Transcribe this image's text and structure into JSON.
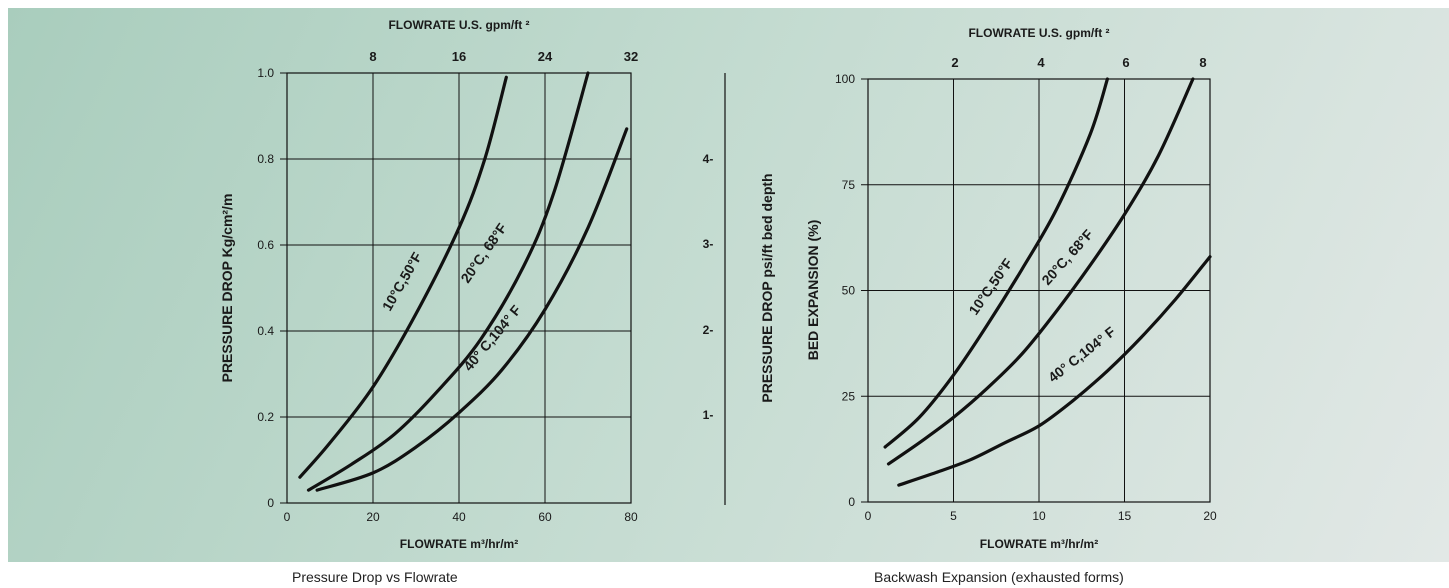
{
  "chart_data": [
    {
      "type": "line",
      "caption": "Pressure Drop vs Flowrate",
      "xlabel": "FLOWRATE m³/hr/m²",
      "x2label": "FLOWRATE U.S. gpm/ft ²",
      "ylabel": "PRESSURE DROP Kg/cm²/m",
      "y2label": "PRESSURE DROP psi/ft  bed  depth",
      "xlim": [
        0,
        80
      ],
      "ylim": [
        0,
        1.0
      ],
      "xticks": [
        "0",
        "20",
        "40",
        "60",
        "80"
      ],
      "yticks": [
        "0",
        "0.2",
        "0.4",
        "0.6",
        "0.8",
        "1.0"
      ],
      "x2ticks": [
        "8",
        "16",
        "24",
        "32"
      ],
      "y2ticks": [
        "1-",
        "2-",
        "3-",
        "4-"
      ],
      "grid": true,
      "series": [
        {
          "name": "10°C,50°F",
          "x": [
            3,
            10,
            20,
            30,
            40,
            46,
            51
          ],
          "y": [
            0.06,
            0.14,
            0.27,
            0.44,
            0.64,
            0.8,
            0.99
          ]
        },
        {
          "name": "20°C, 68°F",
          "x": [
            5,
            15,
            25,
            35,
            45,
            55,
            62,
            70
          ],
          "y": [
            0.03,
            0.09,
            0.16,
            0.26,
            0.38,
            0.55,
            0.72,
            1.0
          ]
        },
        {
          "name": "40° C,104° F",
          "x": [
            7,
            20,
            30,
            40,
            50,
            60,
            70,
            79
          ],
          "y": [
            0.03,
            0.07,
            0.13,
            0.21,
            0.31,
            0.45,
            0.64,
            0.87
          ]
        }
      ]
    },
    {
      "type": "line",
      "caption": "Backwash Expansion (exhausted forms)",
      "xlabel": "FLOWRATE m³/hr/m²",
      "x2label": "FLOWRATE U.S. gpm/ft ²",
      "ylabel": "BED EXPANSION  (%)",
      "xlim": [
        0,
        20
      ],
      "ylim": [
        0,
        100
      ],
      "xticks": [
        "0",
        "5",
        "10",
        "15",
        "20"
      ],
      "yticks": [
        "0",
        "25",
        "50",
        "75",
        "100"
      ],
      "x2ticks": [
        "2",
        "4",
        "6",
        "8"
      ],
      "grid": true,
      "series": [
        {
          "name": "10°C,50°F",
          "x": [
            1,
            3,
            5,
            7,
            9,
            11,
            13,
            14
          ],
          "y": [
            13,
            20,
            30,
            42,
            55,
            69,
            87,
            100
          ]
        },
        {
          "name": "20°C, 68°F",
          "x": [
            1.2,
            3,
            5,
            7,
            9,
            11,
            13,
            15,
            17,
            19
          ],
          "y": [
            9,
            14,
            20,
            27,
            35,
            45,
            56,
            68,
            82,
            100
          ]
        },
        {
          "name": "40° C,104° F",
          "x": [
            1.8,
            4,
            6,
            8,
            10,
            12,
            14,
            16,
            18,
            20
          ],
          "y": [
            4,
            7,
            10,
            14,
            18,
            24,
            31,
            39,
            48,
            58
          ]
        }
      ]
    }
  ]
}
